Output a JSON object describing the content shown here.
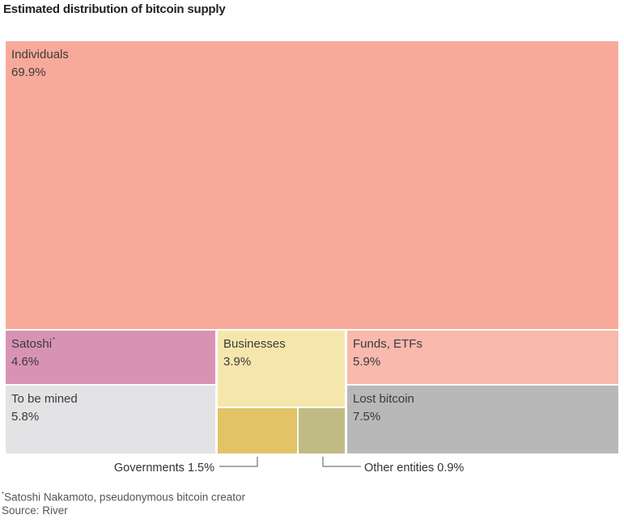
{
  "title": "Estimated distribution of bitcoin supply",
  "chart_data": {
    "type": "treemap",
    "title": "Estimated distribution of bitcoin supply",
    "unit": "%",
    "series": [
      {
        "name": "Individuals",
        "value": 69.9,
        "color": "#f8aa9a"
      },
      {
        "name": "Satoshi",
        "value": 4.6,
        "color": "#d893b4",
        "footnote_marker": "*"
      },
      {
        "name": "To be mined",
        "value": 5.8,
        "color": "#e3e3e5"
      },
      {
        "name": "Businesses",
        "value": 3.9,
        "color": "#f5e7ac"
      },
      {
        "name": "Governments",
        "value": 1.5,
        "color": "#e2c466"
      },
      {
        "name": "Other entities",
        "value": 0.9,
        "color": "#c0bb84"
      },
      {
        "name": "Funds, ETFs",
        "value": 5.9,
        "color": "#f9b9ad"
      },
      {
        "name": "Lost bitcoin",
        "value": 7.5,
        "color": "#b8b8b8"
      }
    ]
  },
  "footnote": {
    "marker": "*",
    "text": "Satoshi Nakamoto, pseudonymous bitcoin creator"
  },
  "source": "Source: River"
}
